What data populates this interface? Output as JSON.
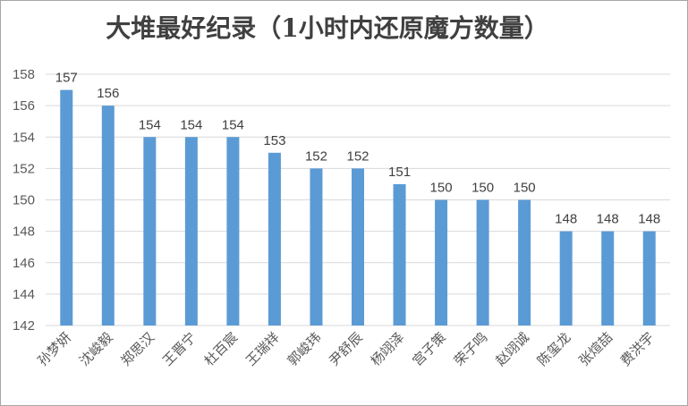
{
  "chart_data": {
    "type": "bar",
    "title": "大堆最好纪录（1小时内还原魔方数量）",
    "xlabel": "",
    "ylabel": "",
    "categories": [
      "孙梦妍",
      "沈峻毅",
      "郑思汉",
      "王晋宁",
      "杜百宸",
      "王瑞祥",
      "郭峻玮",
      "尹舒辰",
      "杨翊泽",
      "宫子策",
      "荣子鸣",
      "赵翊诚",
      "陈玺龙",
      "张煊喆",
      "费洪宇"
    ],
    "values": [
      157,
      156,
      154,
      154,
      154,
      153,
      152,
      152,
      151,
      150,
      150,
      150,
      148,
      148,
      148
    ],
    "ylim": [
      142,
      158
    ],
    "yticks": [
      142,
      144,
      146,
      148,
      150,
      152,
      154,
      156,
      158
    ],
    "grid": true,
    "legend": "none",
    "colors": {
      "bar": "#5b9bd5",
      "grid": "#d9d9d9",
      "text": "#595959",
      "title": "#404040"
    }
  }
}
